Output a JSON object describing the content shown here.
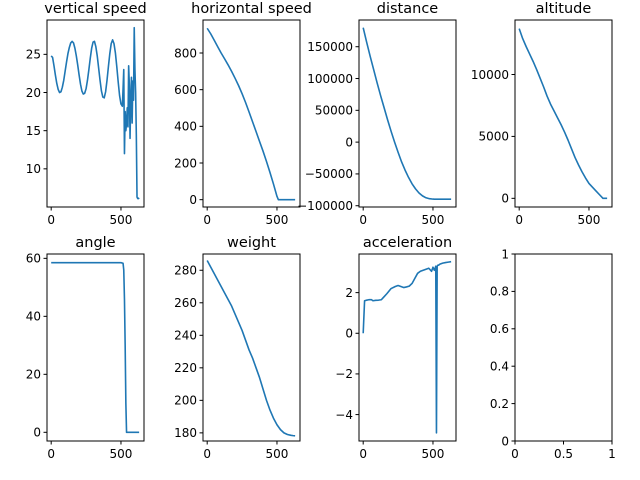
{
  "figure": {
    "background": "#ffffff",
    "line_color": "#1f77b4"
  },
  "chart_data": [
    {
      "type": "line",
      "title": "vertical speed",
      "xlim": [
        -30,
        665
      ],
      "ylim": [
        5,
        29.5
      ],
      "xticks": [
        0,
        500
      ],
      "yticks": [
        10,
        15,
        20,
        25
      ],
      "x": [
        0,
        10,
        20,
        30,
        40,
        50,
        60,
        70,
        80,
        90,
        100,
        110,
        120,
        130,
        140,
        150,
        160,
        170,
        180,
        190,
        200,
        210,
        220,
        230,
        240,
        250,
        260,
        270,
        280,
        290,
        300,
        310,
        320,
        330,
        340,
        350,
        360,
        370,
        380,
        390,
        400,
        410,
        420,
        430,
        440,
        450,
        460,
        470,
        480,
        490,
        500,
        510,
        515,
        520,
        525,
        530,
        535,
        540,
        545,
        550,
        555,
        560,
        565,
        570,
        575,
        580,
        585,
        590,
        595,
        600,
        605,
        610,
        615,
        620,
        625,
        630
      ],
      "y": [
        24.8,
        24.6,
        23.5,
        22.3,
        21.2,
        20.4,
        20.0,
        20.1,
        20.7,
        21.6,
        22.8,
        24.0,
        25.1,
        25.9,
        26.5,
        26.7,
        26.5,
        25.8,
        24.8,
        23.6,
        22.3,
        21.1,
        20.2,
        19.8,
        19.9,
        20.5,
        21.6,
        23.0,
        24.5,
        25.8,
        26.6,
        26.7,
        26.0,
        24.8,
        23.2,
        21.6,
        20.2,
        19.4,
        19.3,
        20.1,
        21.6,
        23.4,
        25.1,
        26.4,
        26.9,
        26.4,
        25.2,
        23.4,
        21.4,
        19.6,
        18.5,
        18.2,
        20.5,
        23.0,
        12.0,
        17.5,
        15.0,
        16.0,
        18.0,
        15.5,
        23.5,
        21.0,
        14.0,
        19.0,
        22.0,
        16.0,
        21.5,
        19.0,
        28.5,
        23.0,
        20.0,
        14.5,
        6.3,
        6.1,
        6.1,
        6.2
      ]
    },
    {
      "type": "line",
      "title": "horizontal speed",
      "xlim": [
        -30,
        665
      ],
      "ylim": [
        -40,
        980
      ],
      "xticks": [
        0,
        500
      ],
      "yticks": [
        0,
        200,
        400,
        600,
        800
      ],
      "x": [
        0,
        25,
        50,
        75,
        100,
        125,
        150,
        175,
        200,
        225,
        250,
        275,
        300,
        325,
        350,
        375,
        400,
        425,
        450,
        475,
        500,
        510,
        520,
        540,
        560,
        580,
        600,
        620,
        630
      ],
      "y": [
        935,
        905,
        870,
        835,
        800,
        768,
        735,
        700,
        662,
        622,
        578,
        530,
        478,
        425,
        372,
        318,
        265,
        208,
        148,
        85,
        18,
        0,
        0,
        0,
        0,
        0,
        0,
        0,
        0
      ]
    },
    {
      "type": "line",
      "title": "distance",
      "xlim": [
        -30,
        665
      ],
      "ylim": [
        -102000,
        192000
      ],
      "xticks": [
        0,
        500
      ],
      "yticks": [
        -100000,
        -50000,
        0,
        50000,
        100000,
        150000
      ],
      "x": [
        0,
        25,
        50,
        75,
        100,
        125,
        150,
        175,
        200,
        225,
        250,
        275,
        300,
        325,
        350,
        375,
        400,
        425,
        450,
        475,
        500,
        510,
        520,
        540,
        560,
        580,
        600,
        620,
        630
      ],
      "y": [
        180000,
        157000,
        135000,
        114000,
        93000,
        73000,
        54000,
        35000,
        17000,
        0,
        -16000,
        -31000,
        -44000,
        -55500,
        -65500,
        -73500,
        -80000,
        -84500,
        -87500,
        -89000,
        -89600,
        -89700,
        -89700,
        -89700,
        -89700,
        -89700,
        -89700,
        -89700,
        -89700
      ]
    },
    {
      "type": "line",
      "title": "altitude",
      "xlim": [
        -30,
        665
      ],
      "ylim": [
        -700,
        14400
      ],
      "xticks": [
        0,
        500
      ],
      "yticks": [
        0,
        5000,
        10000
      ],
      "x": [
        0,
        25,
        50,
        75,
        100,
        125,
        150,
        175,
        200,
        225,
        250,
        275,
        300,
        325,
        350,
        375,
        400,
        425,
        450,
        475,
        500,
        525,
        550,
        575,
        600,
        615,
        630
      ],
      "y": [
        13700,
        12900,
        12250,
        11650,
        11050,
        10400,
        9700,
        9000,
        8250,
        7600,
        7050,
        6500,
        5950,
        5350,
        4700,
        4000,
        3300,
        2700,
        2150,
        1650,
        1200,
        900,
        600,
        300,
        0,
        0,
        0
      ]
    },
    {
      "type": "line",
      "title": "angle",
      "xlim": [
        -30,
        665
      ],
      "ylim": [
        -3,
        61.5
      ],
      "xticks": [
        0,
        500
      ],
      "yticks": [
        0,
        20,
        40,
        60
      ],
      "x": [
        0,
        100,
        200,
        300,
        400,
        500,
        515,
        520,
        525,
        530,
        535,
        540,
        545,
        550,
        560,
        580,
        600,
        620,
        630
      ],
      "y": [
        58.5,
        58.5,
        58.5,
        58.5,
        58.5,
        58.5,
        58.3,
        56,
        46,
        30,
        10,
        0,
        0,
        0,
        0,
        0,
        0,
        0,
        0
      ]
    },
    {
      "type": "line",
      "title": "weight",
      "xlim": [
        -30,
        665
      ],
      "ylim": [
        175,
        290
      ],
      "xticks": [
        0,
        500
      ],
      "yticks": [
        180,
        200,
        220,
        240,
        260,
        280
      ],
      "x": [
        0,
        25,
        50,
        75,
        100,
        125,
        150,
        175,
        200,
        225,
        250,
        275,
        300,
        325,
        350,
        375,
        400,
        425,
        450,
        475,
        500,
        525,
        550,
        575,
        600,
        615,
        630
      ],
      "y": [
        286,
        282,
        278,
        274,
        270,
        266,
        262,
        258,
        253,
        248,
        243,
        237,
        231,
        226,
        220,
        214,
        207,
        200,
        194,
        189,
        185,
        182,
        180,
        179,
        178.5,
        178.3,
        178.2
      ]
    },
    {
      "type": "line",
      "title": "acceleration",
      "xlim": [
        -30,
        665
      ],
      "ylim": [
        -5.3,
        3.9
      ],
      "xticks": [
        0,
        500
      ],
      "yticks": [
        -4,
        -2,
        0,
        2
      ],
      "x": [
        0,
        10,
        20,
        40,
        60,
        70,
        90,
        110,
        130,
        150,
        170,
        200,
        230,
        250,
        270,
        290,
        310,
        330,
        350,
        370,
        390,
        410,
        430,
        450,
        470,
        490,
        500,
        510,
        515,
        520,
        525,
        530,
        535,
        540,
        550,
        570,
        590,
        610,
        630
      ],
      "y": [
        0.0,
        1.6,
        1.62,
        1.65,
        1.65,
        1.6,
        1.62,
        1.63,
        1.65,
        1.8,
        1.95,
        2.2,
        2.3,
        2.35,
        2.3,
        2.25,
        2.28,
        2.32,
        2.45,
        2.7,
        2.95,
        3.05,
        3.1,
        3.15,
        3.2,
        3.05,
        3.25,
        3.1,
        3.2,
        3.3,
        -4.9,
        3.3,
        3.35,
        3.35,
        3.4,
        3.45,
        3.48,
        3.5,
        3.52
      ]
    },
    {
      "type": "line",
      "title": "",
      "xlim": [
        0,
        1
      ],
      "ylim": [
        0,
        1
      ],
      "xticks": [
        0.0,
        0.5,
        1.0
      ],
      "yticks": [
        0.0,
        0.2,
        0.4,
        0.6,
        0.8,
        1.0
      ],
      "x": [],
      "y": []
    }
  ]
}
